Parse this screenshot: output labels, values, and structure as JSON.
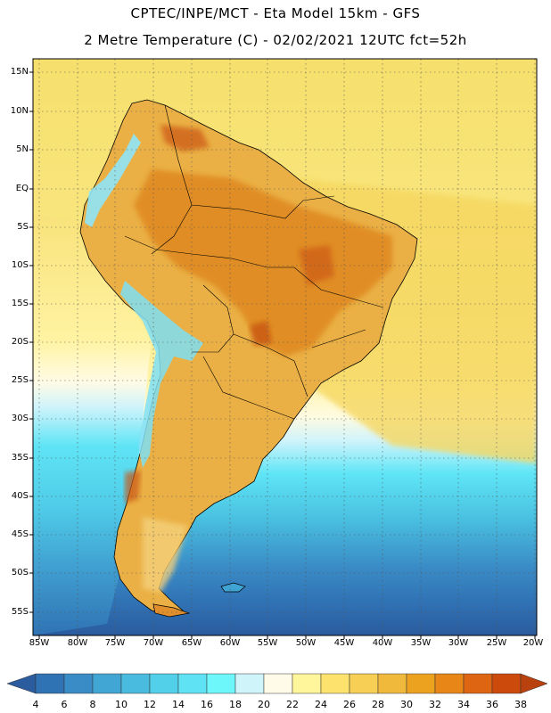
{
  "header": {
    "title_line1": "CPTEC/INPE/MCT -  Eta Model 15km - GFS",
    "title_line2": "2 Metre Temperature (C) - 02/02/2021 12UTC fct=52h"
  },
  "map": {
    "variable": "2 Metre Temperature",
    "units": "C",
    "lat_range": [
      -58,
      17
    ],
    "lon_range": [
      -86,
      -20
    ],
    "lat_labels": [
      "15N",
      "10N",
      "5N",
      "EQ",
      "5S",
      "10S",
      "15S",
      "20S",
      "25S",
      "30S",
      "35S",
      "40S",
      "45S",
      "50S",
      "55S"
    ],
    "lon_labels": [
      "85W",
      "80W",
      "75W",
      "70W",
      "65W",
      "60W",
      "55W",
      "50W",
      "45W",
      "40W",
      "35W",
      "30W",
      "25W",
      "20W"
    ]
  },
  "colorbar": {
    "labels": [
      "4",
      "6",
      "8",
      "10",
      "12",
      "14",
      "16",
      "18",
      "20",
      "22",
      "24",
      "26",
      "28",
      "30",
      "32",
      "34",
      "36",
      "38"
    ],
    "colors": [
      "#2a5c9e",
      "#2f73b4",
      "#3a8cc6",
      "#42a6d4",
      "#49bbdf",
      "#52d0ea",
      "#5fe2f4",
      "#6ef7fb",
      "#cff5fb",
      "#fffbe8",
      "#fff59a",
      "#fde36e",
      "#f7cf55",
      "#f0b93c",
      "#eca21f",
      "#e88618",
      "#de6512",
      "#cc4a0c",
      "#b9410d"
    ]
  }
}
